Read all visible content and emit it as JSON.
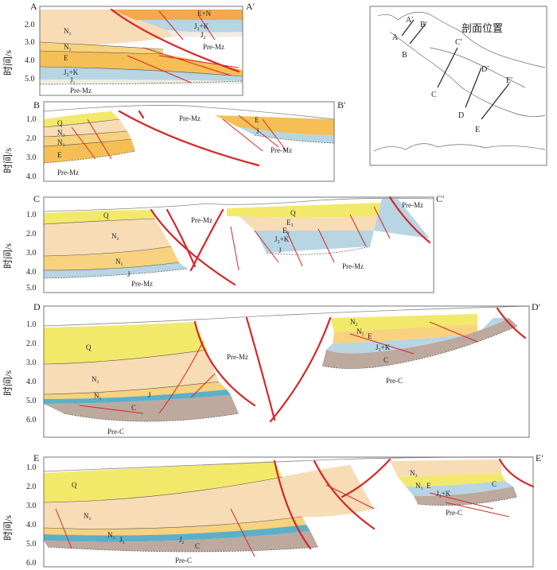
{
  "sections": [
    {
      "start": "A",
      "end": "A′",
      "ticks": [
        "2.0",
        "3.0",
        "4.0",
        "5.0"
      ],
      "units": [
        "N₂",
        "N₁",
        "E",
        "J₃+K",
        "J₂",
        "Pre-Mz",
        "E+N",
        "J₃+K",
        "J₂",
        "Pre-Mz"
      ]
    },
    {
      "start": "B",
      "end": "B′",
      "ticks": [
        "1.0",
        "2.0",
        "3.0",
        "4.0"
      ],
      "units": [
        "Q",
        "N₂",
        "N₁",
        "E",
        "Pre-Mz",
        "Pre-Mz",
        "E",
        "J",
        "Pre-Mz"
      ]
    },
    {
      "start": "C",
      "end": "C′",
      "ticks": [
        "1.0",
        "2.0",
        "3.0",
        "4.0",
        "5.0"
      ],
      "units": [
        "Q",
        "N₂",
        "N₁",
        "J",
        "Pre-Mz",
        "Pre-Mz",
        "Q",
        "E₃",
        "E₂",
        "J₃+K",
        "J",
        "Pre-Mz",
        "Pre-Mz"
      ]
    },
    {
      "start": "D",
      "end": "D′",
      "ticks": [
        "1.0",
        "2.0",
        "3.0",
        "4.0",
        "5.0",
        "6.0"
      ],
      "units": [
        "Q",
        "N₂",
        "N₁",
        "J",
        "C",
        "Pre-C",
        "Pre-Mz",
        "N₂",
        "N₁",
        "E",
        "J₃+K",
        "C",
        "Pre-C"
      ]
    },
    {
      "start": "E",
      "end": "E′",
      "ticks": [
        "1.0",
        "2.0",
        "3.0",
        "4.0",
        "5.0",
        "6.0"
      ],
      "units": [
        "Q",
        "N₂",
        "N₁",
        "J₃",
        "J₂",
        "C",
        "Pre-C",
        "N₂",
        "N₁",
        "E",
        "J₃+K",
        "C",
        "Pre-C"
      ]
    }
  ],
  "y_axis_label": "时间/s",
  "location_map": {
    "title": "剖面位置",
    "line_labels": [
      "A",
      "A′",
      "B",
      "B′",
      "C",
      "C′",
      "D",
      "D′",
      "E",
      "E′"
    ]
  },
  "colors": {
    "Q": "#f2e96a",
    "N2": "#f7dcb6",
    "N1": "#f8d27e",
    "E": "#f5bf55",
    "J3K": "#b7d5e2",
    "J2": "#f0ece2",
    "C": "#bda99e",
    "fault": "#d62728"
  }
}
